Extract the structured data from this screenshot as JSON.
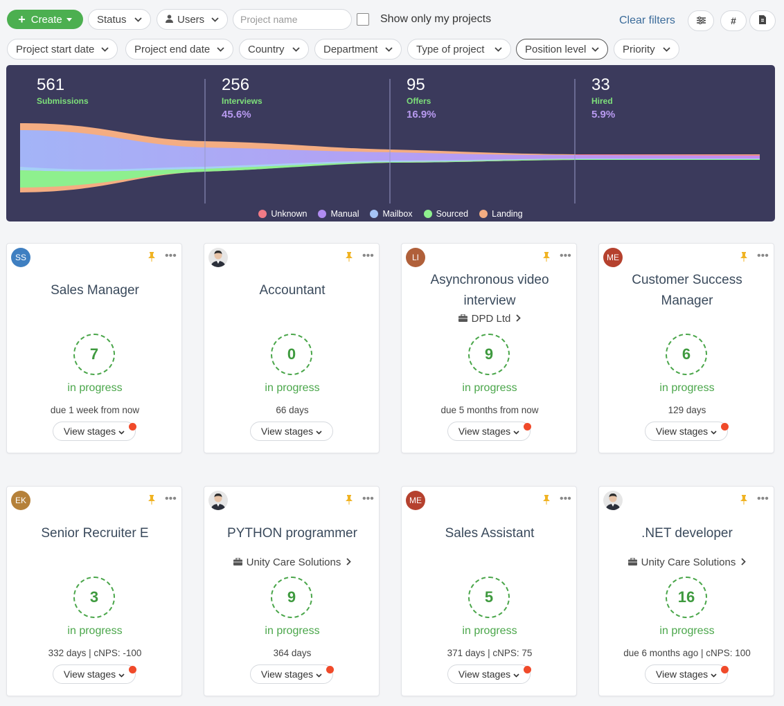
{
  "toolbar": {
    "create_label": "Create",
    "status_label": "Status",
    "users_label": "Users",
    "search_placeholder": "Project name",
    "show_mine_label": "Show only my projects",
    "clear_filters_label": "Clear filters"
  },
  "filters": [
    {
      "id": "project-start-date",
      "label": "Project start date"
    },
    {
      "id": "project-end-date",
      "label": "Project end date"
    },
    {
      "id": "country",
      "label": "Country"
    },
    {
      "id": "department",
      "label": "Department"
    },
    {
      "id": "type-of-project",
      "label": "Type of project"
    },
    {
      "id": "position-level",
      "label": "Position level"
    },
    {
      "id": "priority",
      "label": "Priority"
    }
  ],
  "funnel": {
    "stages": [
      {
        "value": "561",
        "label": "Submissions",
        "percent": ""
      },
      {
        "value": "256",
        "label": "Interviews",
        "percent": "45.6%"
      },
      {
        "value": "95",
        "label": "Offers",
        "percent": "16.9%"
      },
      {
        "value": "33",
        "label": "Hired",
        "percent": "5.9%"
      }
    ],
    "legend": [
      {
        "name": "Unknown",
        "color": "#f27a86"
      },
      {
        "name": "Manual",
        "color": "#b18cf2"
      },
      {
        "name": "Mailbox",
        "color": "#a5c4f7"
      },
      {
        "name": "Sourced",
        "color": "#8ef08e"
      },
      {
        "name": "Landing",
        "color": "#f4ad82"
      }
    ]
  },
  "projects": [
    {
      "title_lines": [
        "Sales Manager"
      ],
      "company": "",
      "count": "7",
      "status": "in progress",
      "due": "due 1 week from now",
      "stages_label": "View stages",
      "notify": true,
      "avatar": {
        "initials": "SS",
        "color": "#3f7fc1",
        "photo": false
      }
    },
    {
      "title_lines": [
        "Accountant"
      ],
      "company": "",
      "count": "0",
      "status": "in progress",
      "due": "66 days",
      "stages_label": "View stages",
      "notify": false,
      "avatar": {
        "initials": "",
        "color": "#d9d9d9",
        "photo": true
      }
    },
    {
      "title_lines": [
        "Asynchronous video",
        "interview"
      ],
      "company": "DPD Ltd",
      "count": "9",
      "status": "in progress",
      "due": "due 5 months from now",
      "stages_label": "View stages",
      "notify": true,
      "avatar": {
        "initials": "LI",
        "color": "#b0603a",
        "photo": false
      }
    },
    {
      "title_lines": [
        "Customer Success",
        "Manager"
      ],
      "company": "",
      "count": "6",
      "status": "in progress",
      "due": "129 days",
      "stages_label": "View stages",
      "notify": true,
      "avatar": {
        "initials": "ME",
        "color": "#b5412e",
        "photo": false
      }
    },
    {
      "title_lines": [
        "Senior Recruiter E"
      ],
      "company": "",
      "count": "3",
      "status": "in progress",
      "due": "332 days | cNPS: -100",
      "stages_label": "View stages",
      "notify": true,
      "avatar": {
        "initials": "EK",
        "color": "#b5813a",
        "photo": false
      }
    },
    {
      "title_lines": [
        "PYTHON programmer"
      ],
      "company": "Unity Care Solutions",
      "count": "9",
      "status": "in progress",
      "due": "364 days",
      "stages_label": "View stages",
      "notify": true,
      "avatar": {
        "initials": "",
        "color": "#d9d9d9",
        "photo": true
      }
    },
    {
      "title_lines": [
        "Sales Assistant"
      ],
      "company": "",
      "count": "5",
      "status": "in progress",
      "due": "371 days | cNPS: 75",
      "stages_label": "View stages",
      "notify": true,
      "avatar": {
        "initials": "ME",
        "color": "#b5412e",
        "photo": false
      }
    },
    {
      "title_lines": [
        ".NET developer"
      ],
      "company": "Unity Care Solutions",
      "count": "16",
      "status": "in progress",
      "due": "due 6 months ago | cNPS: 100",
      "stages_label": "View stages",
      "notify": true,
      "avatar": {
        "initials": "",
        "color": "#d9d9d9",
        "photo": true
      }
    }
  ]
}
